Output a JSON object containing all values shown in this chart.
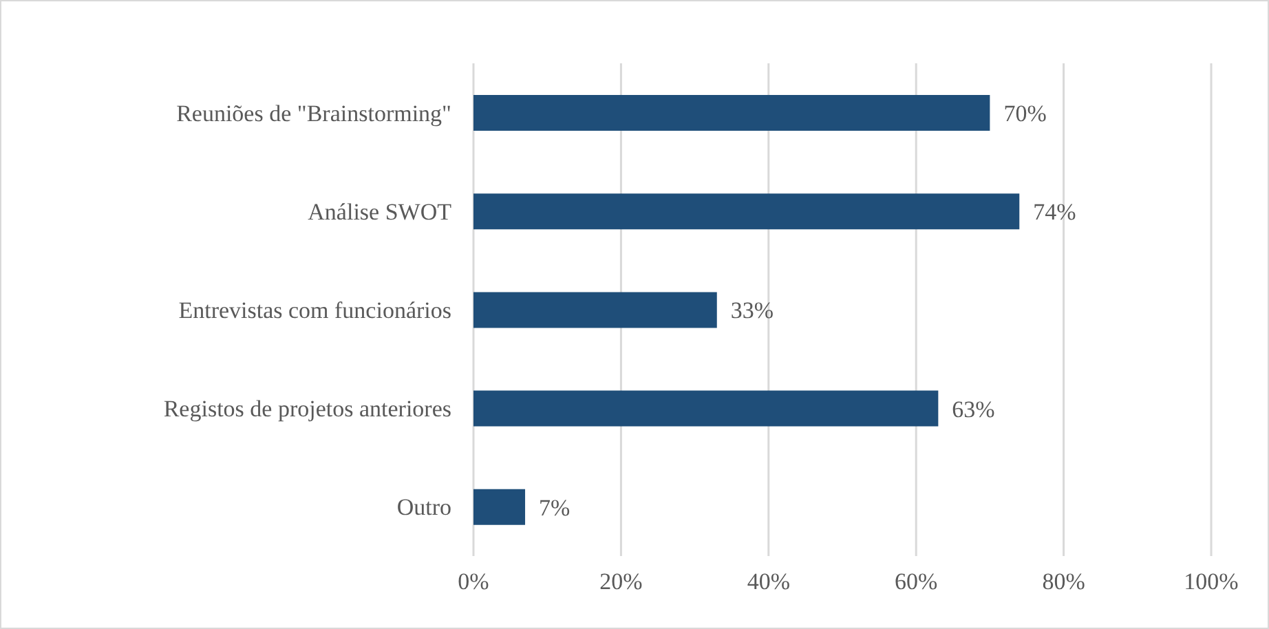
{
  "chart_data": {
    "type": "bar",
    "orientation": "horizontal",
    "categories": [
      "Reuniões de \"Brainstorming\"",
      "Análise SWOT",
      "Entrevistas com funcionários",
      "Registos de projetos anteriores",
      "Outro"
    ],
    "values": [
      70,
      74,
      33,
      63,
      7
    ],
    "value_labels": [
      "70%",
      "74%",
      "33%",
      "63%",
      "7%"
    ],
    "color": "#1f4e79",
    "xlim": [
      0,
      100
    ],
    "xticks": [
      {
        "value": 0,
        "label": "0%"
      },
      {
        "value": 20,
        "label": "20%"
      },
      {
        "value": 40,
        "label": "40%"
      },
      {
        "value": 60,
        "label": "60%"
      },
      {
        "value": 80,
        "label": "80%"
      },
      {
        "value": 100,
        "label": "100%"
      }
    ],
    "grid": "x",
    "legend": false
  }
}
